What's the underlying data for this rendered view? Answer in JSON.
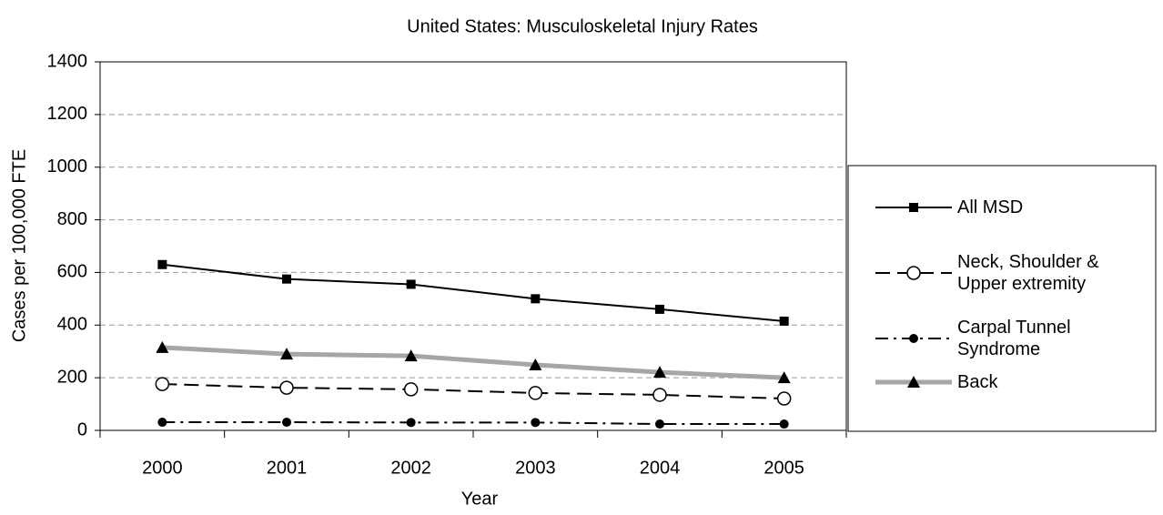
{
  "chart_data": {
    "type": "line",
    "title": "United States: Musculoskeletal Injury Rates",
    "x_label": "Year",
    "y_label": "Cases per 100,000 FTE",
    "categories": [
      "2000",
      "2001",
      "2002",
      "2003",
      "2004",
      "2005"
    ],
    "series": [
      {
        "name": "All MSD",
        "color": "#000000",
        "line_style": "solid",
        "marker": "square",
        "values": [
          630,
          575,
          555,
          500,
          460,
          415
        ]
      },
      {
        "name": "Neck, Shoulder & Upper extremity",
        "color": "#000000",
        "line_style": "dashed",
        "marker": "open-circle",
        "values": [
          176,
          162,
          156,
          142,
          135,
          121
        ]
      },
      {
        "name": "Carpal Tunnel Syndrome",
        "color": "#000000",
        "line_style": "dashdot",
        "marker": "circle",
        "values": [
          31,
          31,
          30,
          30,
          24,
          24
        ]
      },
      {
        "name": "Back",
        "color": "#a6a6a6",
        "line_style": "thick",
        "marker": "triangle",
        "values": [
          315,
          290,
          283,
          249,
          221,
          200
        ]
      }
    ],
    "ylim": [
      0,
      1400
    ],
    "yticks": [
      0,
      200,
      400,
      600,
      800,
      1000,
      1200,
      1400
    ],
    "grid": true,
    "legend": "right"
  }
}
